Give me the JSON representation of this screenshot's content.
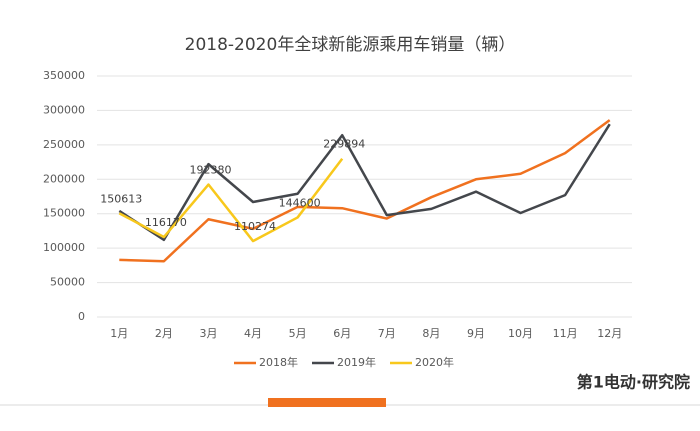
{
  "chart_data": {
    "type": "line",
    "title": "2018-2020年全球新能源乘用车销量（辆）",
    "categories": [
      "1月",
      "2月",
      "3月",
      "4月",
      "5月",
      "6月",
      "7月",
      "8月",
      "9月",
      "10月",
      "11月",
      "12月"
    ],
    "series": [
      {
        "name": "2018年",
        "color": "#f0711f",
        "values": [
          83000,
          81000,
          142000,
          128000,
          160000,
          158000,
          143000,
          174000,
          200000,
          208000,
          238000,
          286000
        ]
      },
      {
        "name": "2019年",
        "color": "#44474c",
        "values": [
          154000,
          112000,
          222000,
          167000,
          179000,
          264000,
          148000,
          157000,
          182000,
          151000,
          177000,
          280000
        ]
      },
      {
        "name": "2020年",
        "color": "#f8c81c",
        "values": [
          150613,
          116170,
          192380,
          110274,
          144600,
          229894,
          null,
          null,
          null,
          null,
          null,
          null
        ],
        "data_labels": true
      }
    ],
    "ylim": [
      0,
      350000
    ],
    "yticks": [
      0,
      50000,
      100000,
      150000,
      200000,
      250000,
      300000,
      350000
    ],
    "grid": true,
    "legend": "bottom",
    "brand": "第1电动·研究院"
  }
}
